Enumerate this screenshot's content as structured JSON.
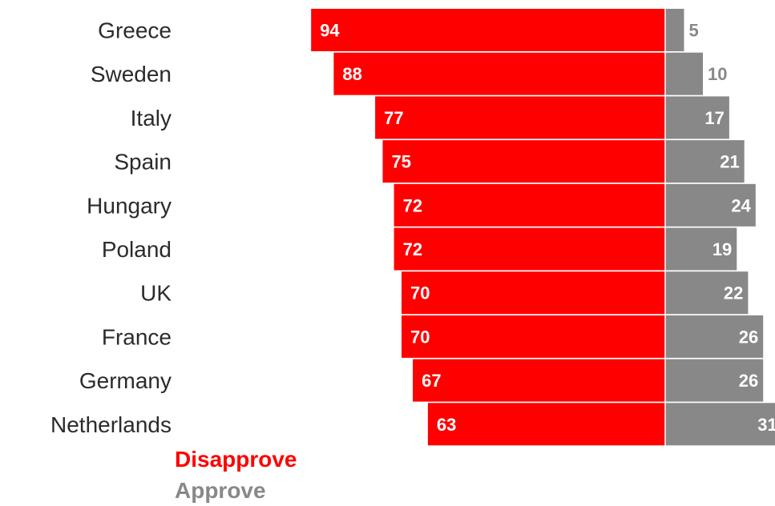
{
  "chart_data": {
    "type": "bar",
    "orientation": "horizontal",
    "stacked": "diverging",
    "categories": [
      "Greece",
      "Sweden",
      "Italy",
      "Spain",
      "Hungary",
      "Poland",
      "UK",
      "France",
      "Germany",
      "Netherlands"
    ],
    "series": [
      {
        "name": "Disapprove",
        "color": "#ff0000",
        "values": [
          94,
          88,
          77,
          75,
          72,
          72,
          70,
          70,
          67,
          63
        ]
      },
      {
        "name": "Approve",
        "color": "#888888",
        "values": [
          5,
          10,
          17,
          21,
          24,
          19,
          22,
          26,
          26,
          31
        ]
      }
    ],
    "grid": false,
    "legend_position": "bottom-left"
  }
}
